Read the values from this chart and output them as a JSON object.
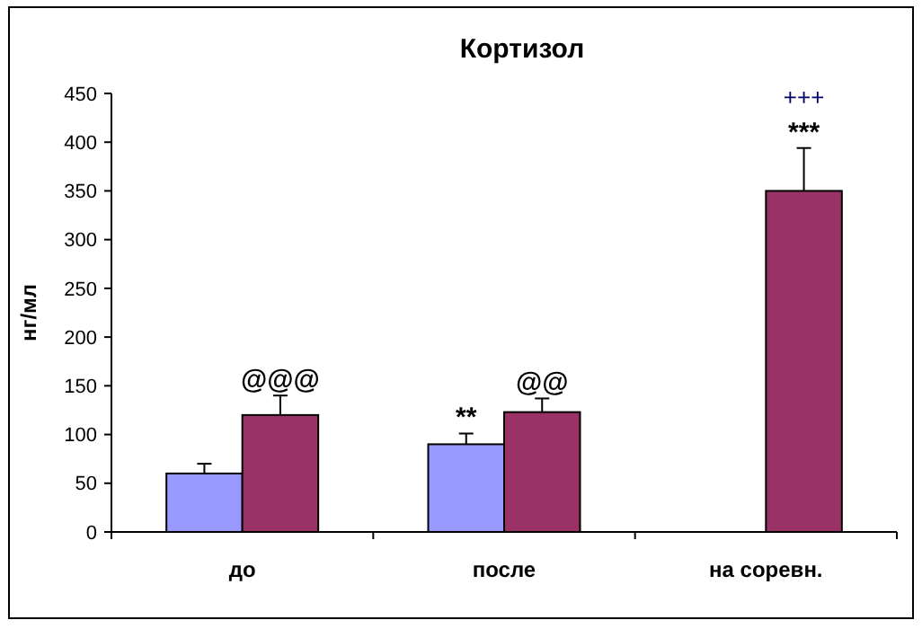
{
  "chart_data": {
    "type": "bar",
    "title": "Кортизол",
    "ylabel": "нг/мл",
    "categories": [
      "до",
      "после",
      "на соревн."
    ],
    "series": [
      {
        "color": "#9999ff",
        "values": [
          60,
          90,
          null
        ],
        "errors": [
          10,
          11,
          null
        ]
      },
      {
        "color": "#993366",
        "values": [
          120,
          123,
          350
        ],
        "errors": [
          20,
          14,
          44
        ]
      }
    ],
    "ylim": [
      0,
      450
    ],
    "yticks": [
      0,
      50,
      100,
      150,
      200,
      250,
      300,
      350,
      400,
      450
    ],
    "grid": false,
    "annotations": [
      {
        "text": "@@@",
        "x": "до",
        "y": 120
      },
      {
        "text": "**",
        "x": "после",
        "y": 90
      },
      {
        "text": "@@",
        "x": "после",
        "y": 123
      },
      {
        "text": "***",
        "x": "на соревн.",
        "y": 350
      },
      "+++"
    ]
  }
}
